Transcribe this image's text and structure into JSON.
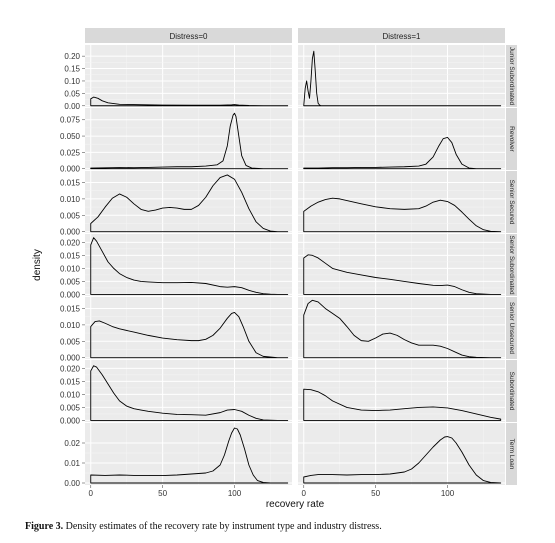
{
  "chart_data": {
    "type": "area",
    "description_free": true,
    "xlabel": "recovery rate",
    "ylabel": "density",
    "x_ticks": [
      "0",
      "50",
      "100"
    ],
    "x_tick_values": [
      0,
      50,
      100
    ],
    "xlim": [
      -4,
      140
    ],
    "columns": [
      "Distress=0",
      "Distress=1"
    ],
    "rows": [
      {
        "label": "Junior Subordinated",
        "ylim": [
          -0.005,
          0.245
        ],
        "ticks": [
          "0.00",
          "0.05",
          "0.10",
          "0.15",
          "0.20"
        ],
        "tick_values": [
          0,
          0.05,
          0.1,
          0.15,
          0.2
        ],
        "series": [
          {
            "x": [
              0,
              2,
              5,
              8,
              12,
              20,
              30,
              50,
              70,
              90,
              98,
              100,
              103,
              110,
              120,
              137
            ],
            "y": [
              0.028,
              0.035,
              0.03,
              0.02,
              0.012,
              0.006,
              0.005,
              0.003,
              0.002,
              0.002,
              0.004,
              0.005,
              0.003,
              0.001,
              0.0,
              0.0
            ]
          },
          {
            "x": [
              0,
              1,
              2,
              3,
              4,
              5,
              6,
              7,
              8,
              9,
              10,
              11,
              12,
              13,
              15,
              20,
              137
            ],
            "y": [
              0.0,
              0.07,
              0.1,
              0.06,
              0.03,
              0.1,
              0.19,
              0.22,
              0.14,
              0.05,
              0.01,
              0.003,
              0.0,
              0.0,
              0.0,
              0.0,
              0.0
            ]
          }
        ]
      },
      {
        "label": "Revolver",
        "ylim": [
          -0.002,
          0.093
        ],
        "ticks": [
          "0.000",
          "0.025",
          "0.050",
          "0.075"
        ],
        "tick_values": [
          0,
          0.025,
          0.05,
          0.075
        ],
        "series": [
          {
            "x": [
              0,
              10,
              20,
              30,
              40,
              50,
              60,
              70,
              80,
              88,
              92,
              95,
              97,
              99,
              100,
              101,
              103,
              105,
              108,
              112,
              120,
              137
            ],
            "y": [
              0.001,
              0.0013,
              0.0018,
              0.0015,
              0.002,
              0.0025,
              0.003,
              0.003,
              0.004,
              0.006,
              0.012,
              0.035,
              0.065,
              0.082,
              0.085,
              0.08,
              0.05,
              0.02,
              0.005,
              0.001,
              0.0,
              0.0
            ]
          },
          {
            "x": [
              0,
              10,
              20,
              30,
              40,
              50,
              60,
              70,
              80,
              85,
              90,
              94,
              97,
              100,
              103,
              106,
              110,
              115,
              120,
              137
            ],
            "y": [
              0.001,
              0.001,
              0.0015,
              0.0015,
              0.002,
              0.002,
              0.0025,
              0.003,
              0.004,
              0.007,
              0.018,
              0.035,
              0.046,
              0.048,
              0.04,
              0.022,
              0.007,
              0.001,
              0.0,
              0.0
            ]
          }
        ]
      },
      {
        "label": "Senior Secured",
        "ylim": [
          -0.0004,
          0.0185
        ],
        "ticks": [
          "0.000",
          "0.005",
          "0.010",
          "0.015"
        ],
        "tick_values": [
          0,
          0.005,
          0.01,
          0.015
        ],
        "series": [
          {
            "x": [
              0,
              5,
              10,
              15,
              20,
              25,
              30,
              35,
              40,
              45,
              50,
              55,
              60,
              65,
              70,
              75,
              80,
              85,
              90,
              95,
              100,
              105,
              110,
              115,
              120,
              125,
              130,
              137
            ],
            "y": [
              0.0025,
              0.0045,
              0.0075,
              0.0102,
              0.0115,
              0.0105,
              0.0085,
              0.0068,
              0.0062,
              0.0066,
              0.0072,
              0.0074,
              0.0072,
              0.0068,
              0.0068,
              0.008,
              0.0105,
              0.014,
              0.0165,
              0.0173,
              0.016,
              0.012,
              0.007,
              0.003,
              0.001,
              0.0002,
              0.0,
              0.0
            ]
          },
          {
            "x": [
              0,
              5,
              10,
              15,
              20,
              25,
              30,
              35,
              40,
              50,
              60,
              70,
              80,
              85,
              90,
              95,
              100,
              105,
              110,
              115,
              120,
              125,
              130,
              137
            ],
            "y": [
              0.0062,
              0.0078,
              0.009,
              0.0098,
              0.0102,
              0.01,
              0.0095,
              0.009,
              0.0085,
              0.0076,
              0.007,
              0.0068,
              0.007,
              0.0078,
              0.009,
              0.0096,
              0.0092,
              0.008,
              0.006,
              0.0038,
              0.0018,
              0.0006,
              0.0001,
              0.0
            ]
          }
        ]
      },
      {
        "label": "Senior Subordinated",
        "ylim": [
          -0.0006,
          0.0232
        ],
        "ticks": [
          "0.000",
          "0.005",
          "0.010",
          "0.015",
          "0.020"
        ],
        "tick_values": [
          0,
          0.005,
          0.01,
          0.015,
          0.02
        ],
        "series": [
          {
            "x": [
              0,
              2,
              4,
              8,
              12,
              16,
              20,
              25,
              30,
              35,
              40,
              50,
              60,
              70,
              80,
              90,
              95,
              100,
              105,
              110,
              115,
              120,
              125,
              130,
              137
            ],
            "y": [
              0.019,
              0.0218,
              0.0205,
              0.0165,
              0.0125,
              0.01,
              0.008,
              0.0065,
              0.0055,
              0.005,
              0.0048,
              0.0045,
              0.0045,
              0.0046,
              0.0042,
              0.003,
              0.0028,
              0.003,
              0.0026,
              0.0016,
              0.0008,
              0.0003,
              0.0001,
              0.0,
              0.0
            ]
          },
          {
            "x": [
              0,
              3,
              6,
              10,
              15,
              20,
              30,
              40,
              50,
              60,
              70,
              80,
              90,
              95,
              100,
              105,
              110,
              115,
              120,
              130,
              137
            ],
            "y": [
              0.014,
              0.0152,
              0.015,
              0.014,
              0.012,
              0.01,
              0.0085,
              0.0075,
              0.0065,
              0.0058,
              0.005,
              0.0042,
              0.0035,
              0.0034,
              0.0036,
              0.003,
              0.0018,
              0.0008,
              0.0003,
              0.0,
              0.0
            ]
          }
        ]
      },
      {
        "label": "Senior Unsecured",
        "ylim": [
          -0.0004,
          0.0185
        ],
        "ticks": [
          "0.000",
          "0.005",
          "0.010",
          "0.015"
        ],
        "tick_values": [
          0,
          0.005,
          0.01,
          0.015
        ],
        "series": [
          {
            "x": [
              0,
              3,
              6,
              10,
              15,
              20,
              30,
              40,
              50,
              60,
              70,
              75,
              80,
              85,
              90,
              95,
              98,
              100,
              103,
              106,
              110,
              115,
              120,
              130,
              137
            ],
            "y": [
              0.0095,
              0.011,
              0.0112,
              0.0105,
              0.0095,
              0.0088,
              0.0078,
              0.0068,
              0.006,
              0.0055,
              0.0052,
              0.0052,
              0.0056,
              0.0068,
              0.009,
              0.012,
              0.0135,
              0.0138,
              0.0125,
              0.0095,
              0.005,
              0.0015,
              0.0004,
              0.0,
              0.0
            ]
          },
          {
            "x": [
              0,
              3,
              6,
              10,
              15,
              20,
              25,
              30,
              35,
              40,
              45,
              50,
              55,
              60,
              65,
              70,
              75,
              80,
              85,
              90,
              95,
              100,
              105,
              110,
              115,
              120,
              130,
              137
            ],
            "y": [
              0.013,
              0.0165,
              0.0175,
              0.017,
              0.015,
              0.0135,
              0.012,
              0.0095,
              0.0068,
              0.0052,
              0.005,
              0.006,
              0.0072,
              0.0075,
              0.0068,
              0.0055,
              0.0045,
              0.0038,
              0.0038,
              0.0038,
              0.0035,
              0.0028,
              0.0018,
              0.0008,
              0.0003,
              0.0001,
              0.0,
              0.0
            ]
          }
        ]
      },
      {
        "label": "Subordinated",
        "ylim": [
          -0.0006,
          0.0232
        ],
        "ticks": [
          "0.000",
          "0.005",
          "0.010",
          "0.015",
          "0.020"
        ],
        "tick_values": [
          0,
          0.005,
          0.01,
          0.015,
          0.02
        ],
        "series": [
          {
            "x": [
              0,
              2,
              4,
              8,
              12,
              16,
              20,
              25,
              30,
              35,
              40,
              50,
              60,
              70,
              80,
              90,
              95,
              100,
              105,
              110,
              115,
              120,
              130,
              137
            ],
            "y": [
              0.019,
              0.021,
              0.0205,
              0.0175,
              0.014,
              0.0105,
              0.0075,
              0.0055,
              0.0045,
              0.004,
              0.0035,
              0.0028,
              0.0023,
              0.0022,
              0.002,
              0.003,
              0.004,
              0.0042,
              0.0035,
              0.002,
              0.0008,
              0.0002,
              0.0,
              0.0
            ]
          },
          {
            "x": [
              0,
              5,
              10,
              15,
              20,
              30,
              40,
              50,
              60,
              70,
              80,
              90,
              100,
              110,
              120,
              130,
              137
            ],
            "y": [
              0.012,
              0.0118,
              0.011,
              0.0095,
              0.0075,
              0.005,
              0.004,
              0.0038,
              0.004,
              0.0045,
              0.005,
              0.0052,
              0.0048,
              0.0038,
              0.0025,
              0.0012,
              0.0005
            ]
          }
        ]
      },
      {
        "label": "Term Loan",
        "ylim": [
          -0.001,
          0.03
        ],
        "ticks": [
          "0.00",
          "0.01",
          "0.02"
        ],
        "tick_values": [
          0,
          0.01,
          0.02
        ],
        "series": [
          {
            "x": [
              0,
              10,
              20,
              30,
              40,
              50,
              60,
              70,
              80,
              85,
              90,
              93,
              96,
              98,
              100,
              102,
              104,
              107,
              110,
              113,
              116,
              120,
              125,
              130,
              137
            ],
            "y": [
              0.004,
              0.0038,
              0.004,
              0.0038,
              0.0038,
              0.0037,
              0.004,
              0.0045,
              0.005,
              0.006,
              0.009,
              0.014,
              0.021,
              0.025,
              0.0275,
              0.027,
              0.024,
              0.017,
              0.009,
              0.004,
              0.0012,
              0.0003,
              0.0,
              0.0,
              0.0
            ]
          },
          {
            "x": [
              0,
              5,
              10,
              20,
              30,
              40,
              50,
              60,
              70,
              75,
              80,
              85,
              90,
              95,
              98,
              100,
              103,
              106,
              110,
              115,
              120,
              125,
              130,
              137
            ],
            "y": [
              0.003,
              0.0038,
              0.0042,
              0.0042,
              0.004,
              0.0042,
              0.0042,
              0.0045,
              0.0055,
              0.007,
              0.01,
              0.014,
              0.018,
              0.0215,
              0.023,
              0.0232,
              0.0225,
              0.02,
              0.0155,
              0.009,
              0.004,
              0.0012,
              0.0003,
              0.0
            ]
          }
        ]
      }
    ]
  },
  "caption": {
    "label": "Figure 3.",
    "text": " Density estimates of the recovery rate by instrument type and industry distress."
  }
}
